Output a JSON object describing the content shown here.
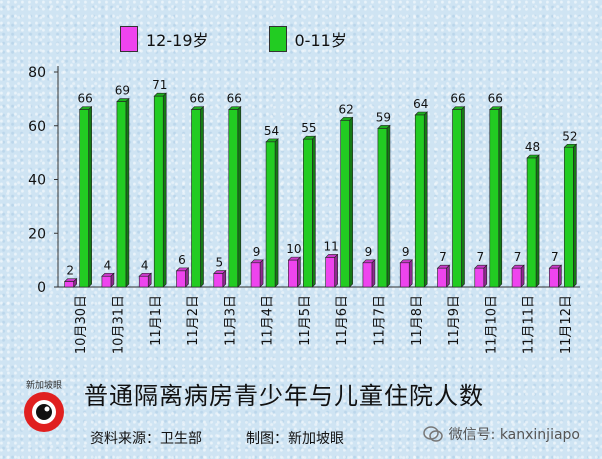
{
  "chart_data": {
    "type": "bar",
    "categories": [
      "10月30日",
      "10月31日",
      "11月1日",
      "11月2日",
      "11月3日",
      "11月4日",
      "11月5日",
      "11月6日",
      "11月7日",
      "11月8日",
      "11月9日",
      "11月10日",
      "11月11日",
      "11月12日"
    ],
    "series": [
      {
        "name": "12-19岁",
        "color": "#ee44ee",
        "values": [
          2,
          4,
          4,
          6,
          5,
          9,
          10,
          11,
          9,
          9,
          7,
          7,
          7,
          7
        ]
      },
      {
        "name": "0-11岁",
        "color": "#22cc22",
        "values": [
          66,
          69,
          71,
          66,
          66,
          54,
          55,
          62,
          59,
          64,
          66,
          66,
          48,
          52
        ]
      }
    ],
    "yticks": [
      0,
      20,
      40,
      60,
      80
    ],
    "ylim": [
      0,
      80
    ],
    "grid": false,
    "legend_position": "top"
  },
  "title": "普通隔离病房青少年与儿童住院人数",
  "footer": {
    "source": "资料来源：卫生部",
    "chart_by": "制图：新加坡眼"
  },
  "logo_text": "新加坡眼",
  "watermark": "微信号: kanxinjiapo"
}
